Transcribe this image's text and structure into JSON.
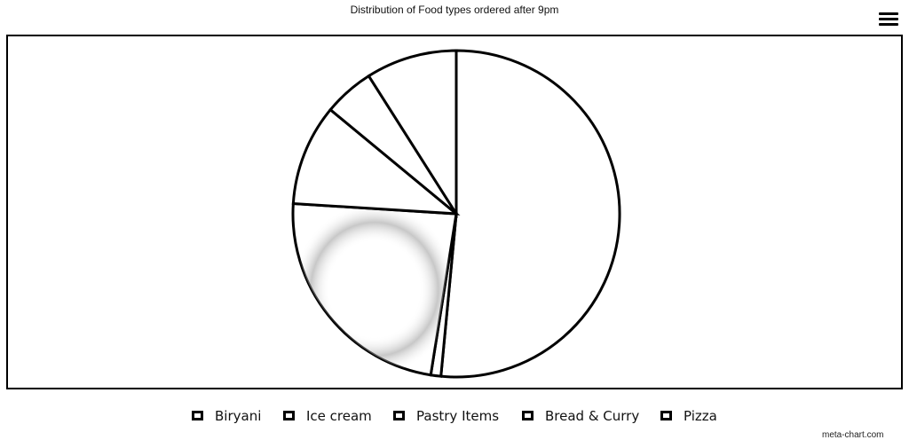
{
  "chart_data": {
    "type": "pie",
    "title": "Distribution of Food types ordered after 9pm",
    "slices": [
      {
        "name": "Biryani",
        "value": 51.5
      },
      {
        "name": "Ice cream",
        "value": 1
      },
      {
        "name": "Pastry Items",
        "value": 23.5
      },
      {
        "name": "Bread & Curry",
        "value": 10
      },
      {
        "name": "Pizza",
        "value": 5
      },
      {
        "name": "",
        "value": 9
      }
    ],
    "legend_placement": "bottom",
    "colors": {
      "slice_fill": "#ffffff",
      "slice_stroke": "#000000"
    }
  },
  "ui": {
    "menu_icon": "hamburger-menu-icon",
    "credit": "meta-chart.com"
  }
}
